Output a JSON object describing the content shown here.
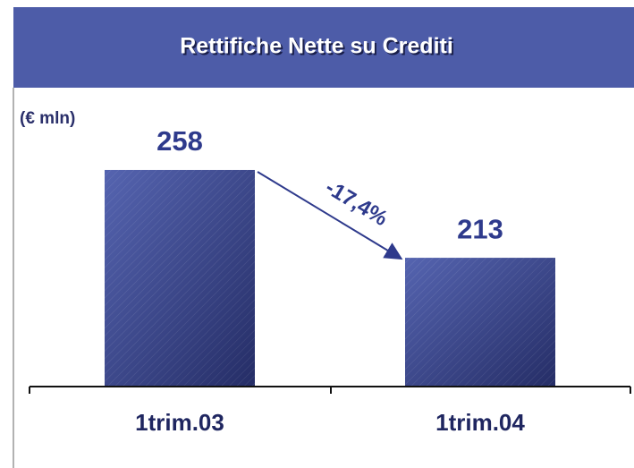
{
  "chart_data": {
    "type": "bar",
    "title": "Rettifiche Nette su Crediti",
    "unit_label": "(€ mln)",
    "categories": [
      "1trim.03",
      "1trim.04"
    ],
    "values": [
      258,
      213
    ],
    "annotation": "-17,4%",
    "color": "#3a4790",
    "ylim": [
      147,
      280
    ]
  }
}
